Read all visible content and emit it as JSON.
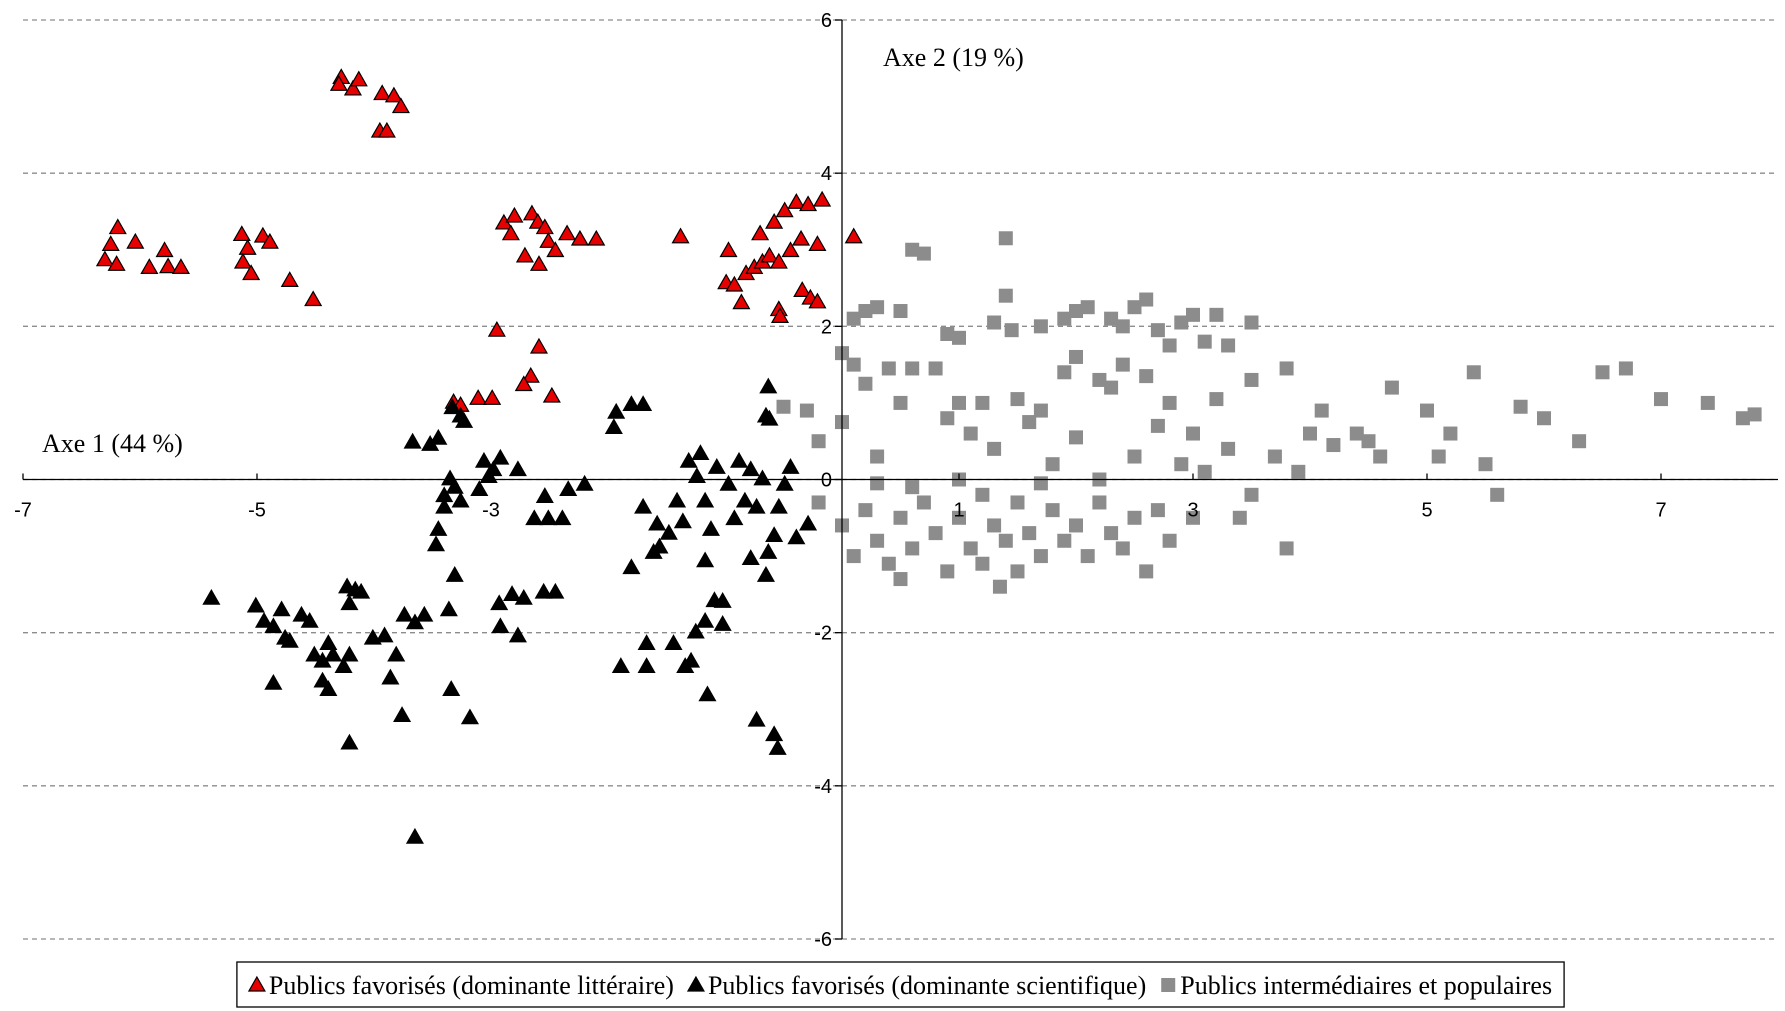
{
  "chart_data": {
    "type": "scatter",
    "x_label": "Axe 1 (44 %)",
    "y_label": "Axe 2 (19 %)",
    "xlim": [
      -7,
      8
    ],
    "ylim": [
      -6,
      6
    ],
    "xticks": [
      -7,
      -5,
      -3,
      1,
      3,
      5,
      7
    ],
    "yticks": [
      -6,
      -4,
      -2,
      0,
      2,
      4,
      6
    ],
    "grid": true,
    "legend": "bottom",
    "series": [
      {
        "name": "Publics favorisés (dominante littéraire)",
        "color": "#e60000",
        "marker": "triangle",
        "x": [
          -4.28,
          -4.18,
          -4.3,
          -4.13,
          -3.93,
          -3.83,
          -3.77,
          -3.95,
          -3.89,
          -6.19,
          -6.25,
          -6.3,
          -6.2,
          -6.04,
          -5.92,
          -5.79,
          -5.76,
          -5.65,
          -5.13,
          -5.08,
          -5.12,
          -5.05,
          -4.95,
          -4.89,
          -4.72,
          -4.52,
          -2.89,
          -2.8,
          -2.83,
          -2.65,
          -2.6,
          -2.54,
          -2.71,
          -2.59,
          -2.51,
          -2.45,
          -2.35,
          -2.24,
          -2.1,
          -1.38,
          -0.97,
          -0.99,
          -0.92,
          -0.86,
          -0.82,
          -0.75,
          -0.7,
          -0.68,
          -0.62,
          -0.58,
          -0.54,
          -0.49,
          -0.44,
          -0.39,
          -0.35,
          -0.29,
          -0.21,
          -0.17,
          -0.34,
          -0.27,
          -0.21,
          -0.54,
          -0.53,
          0.1,
          -2.95,
          -2.59,
          -2.66,
          -2.72,
          -2.48,
          -3.32,
          -3.26,
          -3.11,
          -2.99
        ],
        "values": [
          5.25,
          5.1,
          5.16,
          5.22,
          5.04,
          5.01,
          4.87,
          4.55,
          4.55,
          3.29,
          3.07,
          2.87,
          2.81,
          3.1,
          2.77,
          2.99,
          2.78,
          2.77,
          3.2,
          3.02,
          2.84,
          2.69,
          3.18,
          3.1,
          2.6,
          2.35,
          3.35,
          3.44,
          3.21,
          3.47,
          3.36,
          3.29,
          2.92,
          2.81,
          3.11,
          2.99,
          3.21,
          3.14,
          3.14,
          3.17,
          2.99,
          2.57,
          2.54,
          2.31,
          2.69,
          2.77,
          3.21,
          2.84,
          2.92,
          3.36,
          2.84,
          3.51,
          2.99,
          3.62,
          3.14,
          3.59,
          3.07,
          3.65,
          2.47,
          2.37,
          2.32,
          2.22,
          2.13,
          3.17,
          1.95,
          1.73,
          1.35,
          1.24,
          1.09,
          1.01,
          0.97,
          1.06,
          1.06
        ]
      },
      {
        "name": "Publics favorisés (dominante scientifique)",
        "color": "#000000",
        "marker": "triangle",
        "x": [
          -3.67,
          -3.52,
          -3.45,
          -3.33,
          -3.26,
          -3.23,
          -1.95,
          -1.93,
          -1.8,
          -1.7,
          -0.63,
          -0.65,
          -0.62,
          -3.4,
          -3.35,
          -3.31,
          -3.26,
          -3.4,
          -3.45,
          -3.47,
          -3.06,
          -3.02,
          -3.1,
          -2.92,
          -2.98,
          -2.77,
          -2.54,
          -2.63,
          -2.51,
          -2.39,
          -2.34,
          -2.2,
          -3.31,
          -3.36,
          -2.93,
          -2.82,
          -2.72,
          -2.55,
          -2.45,
          -2.92,
          -2.77,
          -5.39,
          -5.01,
          -4.94,
          -4.79,
          -4.86,
          -4.76,
          -4.72,
          -4.62,
          -4.55,
          -4.86,
          -4.51,
          -4.44,
          -4.39,
          -4.35,
          -4.44,
          -4.39,
          -4.26,
          -4.21,
          -4.23,
          -4.16,
          -4.11,
          -4.21,
          -4.21,
          -4.01,
          -3.91,
          -3.81,
          -3.86,
          -3.74,
          -3.65,
          -3.57,
          -3.76,
          -3.34,
          -3.18,
          -3.65,
          -1.8,
          -1.61,
          -1.56,
          -1.7,
          -1.58,
          -1.48,
          -1.41,
          -1.36,
          -1.31,
          -1.24,
          -1.21,
          -1.17,
          -1.12,
          -1.17,
          -1.07,
          -0.97,
          -0.92,
          -0.88,
          -0.83,
          -0.78,
          -0.73,
          -0.68,
          -0.78,
          -0.63,
          -0.58,
          -0.54,
          -0.49,
          -0.44,
          -0.39,
          -0.29,
          -0.65,
          -1.89,
          -1.67,
          -1.67,
          -1.44,
          -1.34,
          -1.29,
          -1.25,
          -1.17,
          -1.09,
          -1.02,
          -1.02,
          -1.15,
          -0.73,
          -0.58,
          -0.55
        ],
        "values": [
          0.49,
          0.46,
          0.54,
          0.94,
          0.83,
          0.76,
          0.68,
          0.88,
          0.98,
          0.98,
          1.21,
          0.83,
          0.79,
          -0.21,
          0.01,
          -0.1,
          -0.28,
          -0.36,
          -0.65,
          -0.85,
          0.24,
          0.04,
          -0.13,
          0.28,
          0.13,
          0.13,
          -0.22,
          -0.51,
          -0.51,
          -0.51,
          -0.13,
          -0.06,
          -1.25,
          -1.7,
          -1.62,
          -1.5,
          -1.55,
          -1.47,
          -1.47,
          -1.92,
          -2.04,
          -1.55,
          -1.65,
          -1.85,
          -1.7,
          -1.92,
          -2.07,
          -2.11,
          -1.77,
          -1.85,
          -2.66,
          -2.29,
          -2.37,
          -2.14,
          -2.29,
          -2.63,
          -2.74,
          -2.44,
          -2.29,
          -1.4,
          -1.44,
          -1.47,
          -1.62,
          -3.44,
          -2.07,
          -2.04,
          -2.29,
          -2.59,
          -1.77,
          -1.87,
          -1.77,
          -3.08,
          -2.74,
          -3.11,
          -4.67,
          -1.15,
          -0.95,
          -0.88,
          -0.36,
          -0.58,
          -0.7,
          -0.28,
          -0.55,
          0.24,
          0.04,
          0.34,
          -0.28,
          -0.65,
          -1.06,
          0.16,
          -0.06,
          -0.51,
          0.24,
          -0.28,
          0.13,
          -0.36,
          0.01,
          -1.03,
          -0.95,
          -0.73,
          -0.36,
          -0.06,
          0.16,
          -0.76,
          -0.58,
          -1.25,
          -2.44,
          -2.44,
          -2.14,
          -2.14,
          -2.44,
          -2.37,
          -1.99,
          -1.85,
          -1.58,
          -1.59,
          -1.89,
          -2.81,
          -3.14,
          -3.33,
          -3.51
        ]
      },
      {
        "name": "Publics intermédiaires et populaires",
        "color": "#8c8c8c",
        "marker": "square",
        "x": [
          0.6,
          0.7,
          1.4,
          0.1,
          0.2,
          0.3,
          0.5,
          0.9,
          1.0,
          1.3,
          1.4,
          1.45,
          1.7,
          1.9,
          2.0,
          2.1,
          2.3,
          2.4,
          2.5,
          2.6,
          2.7,
          2.8,
          2.9,
          3.0,
          3.1,
          3.2,
          3.3,
          3.5,
          0.0,
          0.1,
          0.2,
          0.4,
          0.6,
          0.8,
          1.0,
          1.2,
          1.5,
          1.7,
          1.9,
          2.0,
          2.2,
          2.3,
          2.4,
          2.6,
          2.8,
          3.0,
          3.2,
          3.5,
          3.8,
          4.1,
          4.4,
          4.7,
          5.0,
          5.2,
          5.4,
          5.8,
          6.0,
          6.3,
          6.5,
          6.7,
          7.0,
          7.4,
          7.7,
          7.8,
          -0.5,
          -0.3,
          -0.2,
          0.0,
          0.3,
          0.5,
          0.9,
          1.1,
          1.3,
          1.6,
          1.8,
          2.0,
          2.2,
          2.5,
          2.7,
          2.9,
          3.1,
          3.3,
          3.5,
          3.7,
          3.9,
          4.0,
          4.2,
          4.5,
          4.6,
          5.1,
          5.5,
          5.6,
          3.8,
          3.4,
          3.0,
          -0.2,
          0.0,
          0.1,
          0.2,
          0.3,
          0.4,
          0.5,
          0.5,
          0.6,
          0.7,
          0.8,
          0.9,
          1.0,
          1.1,
          1.2,
          1.2,
          1.3,
          1.35,
          1.4,
          1.5,
          1.5,
          1.6,
          1.7,
          1.8,
          1.9,
          2.0,
          2.1,
          2.2,
          2.3,
          2.4,
          2.5,
          2.6,
          2.7,
          2.8,
          1.0,
          0.6,
          1.7,
          0.3
        ],
        "values": [
          3.0,
          2.95,
          3.15,
          2.1,
          2.2,
          2.25,
          2.2,
          1.9,
          1.85,
          2.05,
          2.4,
          1.95,
          2.0,
          2.1,
          2.2,
          2.25,
          2.1,
          2.0,
          2.25,
          2.35,
          1.95,
          1.75,
          2.05,
          2.15,
          1.8,
          2.15,
          1.75,
          2.05,
          1.65,
          1.5,
          1.25,
          1.45,
          1.45,
          1.45,
          1.0,
          1.0,
          1.05,
          0.9,
          1.4,
          1.6,
          1.3,
          1.2,
          1.5,
          1.35,
          1.0,
          0.6,
          1.05,
          1.3,
          1.45,
          0.9,
          0.6,
          1.2,
          0.9,
          0.6,
          1.4,
          0.95,
          0.8,
          0.5,
          1.4,
          1.45,
          1.05,
          1.0,
          0.8,
          0.85,
          0.95,
          0.9,
          0.5,
          0.75,
          0.3,
          1.0,
          0.8,
          0.6,
          0.4,
          0.75,
          0.2,
          0.55,
          0.0,
          0.3,
          0.7,
          0.2,
          0.1,
          0.4,
          -0.2,
          0.3,
          0.1,
          0.6,
          0.45,
          0.5,
          0.3,
          0.3,
          0.2,
          -0.2,
          -0.9,
          -0.5,
          -0.5,
          -0.3,
          -0.6,
          -1.0,
          -0.4,
          -0.8,
          -1.1,
          -0.5,
          -1.3,
          -0.9,
          -0.3,
          -0.7,
          -1.2,
          -0.5,
          -0.9,
          -0.2,
          -1.1,
          -0.6,
          -1.4,
          -0.8,
          -0.3,
          -1.2,
          -0.7,
          -1.0,
          -0.4,
          -0.8,
          -0.6,
          -1.0,
          -0.3,
          -0.7,
          -0.9,
          -0.5,
          -1.2,
          -0.4,
          -0.8,
          0.0,
          -0.1,
          -0.05,
          -0.05
        ]
      }
    ]
  }
}
